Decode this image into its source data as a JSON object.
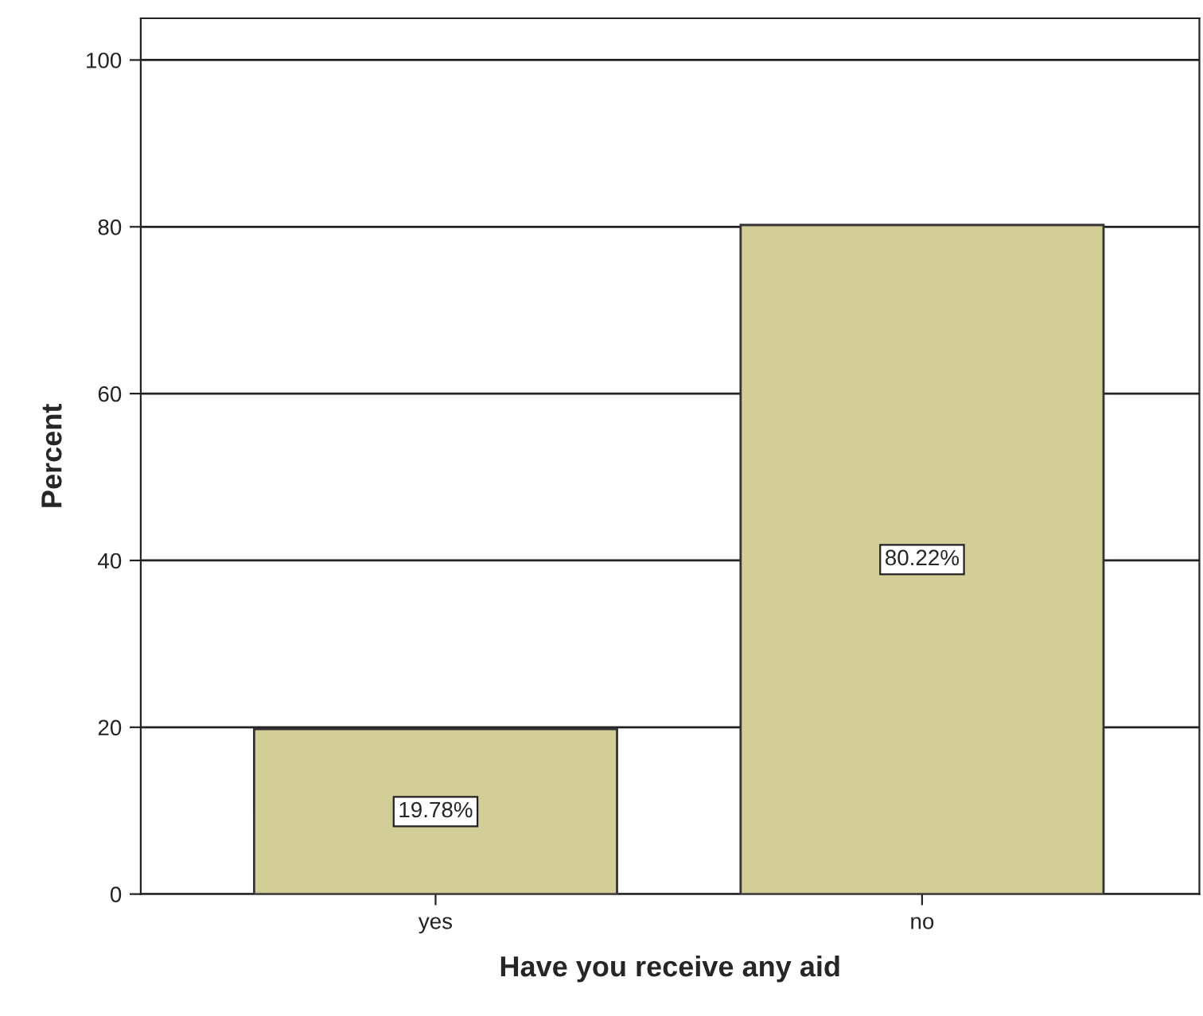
{
  "chart_data": {
    "type": "bar",
    "xlabel": "Have you receive any aid",
    "ylabel": "Percent",
    "categories": [
      "yes",
      "no"
    ],
    "values": [
      19.78,
      80.22
    ],
    "value_labels": [
      "19.78%",
      "80.22%"
    ],
    "color": "#d3cd98",
    "ylim": [
      0,
      105
    ],
    "yticks": [
      0,
      20,
      40,
      60,
      80,
      100
    ],
    "grid": "y",
    "legend": false
  }
}
